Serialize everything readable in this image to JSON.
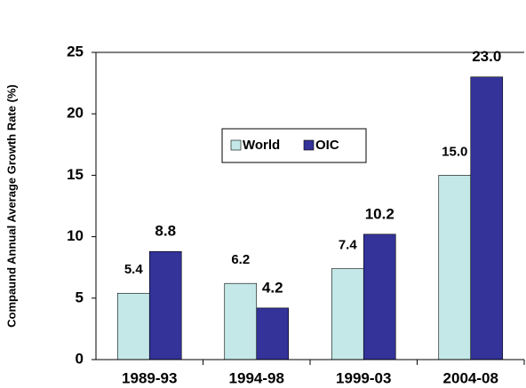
{
  "chart_data": {
    "type": "bar",
    "y_label": "Compaund Annual Average Growth Rate (%)",
    "categories": [
      "1989-93",
      "1994-98",
      "1999-03",
      "2004-08"
    ],
    "series": [
      {
        "name": "World",
        "color": "#c4e8e8",
        "values": [
          5.4,
          6.2,
          7.4,
          15
        ],
        "value_labels": [
          "5.4",
          "6.2",
          "7.4",
          "15.0"
        ]
      },
      {
        "name": "OIC",
        "color": "#333399",
        "values": [
          8.8,
          4.2,
          10.2,
          23
        ],
        "value_labels": [
          "8.8",
          "4.2",
          "10.2",
          "23.0"
        ]
      }
    ],
    "ylim": [
      0,
      25
    ],
    "yticks": [
      0,
      5,
      10,
      15,
      20,
      25
    ],
    "grid": false,
    "legend": "center"
  }
}
